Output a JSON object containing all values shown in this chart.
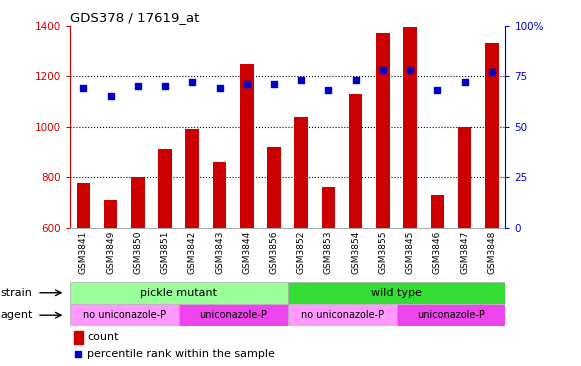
{
  "title": "GDS378 / 17619_at",
  "samples": [
    "GSM3841",
    "GSM3849",
    "GSM3850",
    "GSM3851",
    "GSM3842",
    "GSM3843",
    "GSM3844",
    "GSM3856",
    "GSM3852",
    "GSM3853",
    "GSM3854",
    "GSM3855",
    "GSM3845",
    "GSM3846",
    "GSM3847",
    "GSM3848"
  ],
  "counts": [
    775,
    710,
    800,
    910,
    990,
    860,
    1250,
    920,
    1040,
    760,
    1130,
    1370,
    1395,
    730,
    1000,
    1330
  ],
  "percentiles": [
    69,
    65,
    70,
    70,
    72,
    69,
    71,
    71,
    73,
    68,
    73,
    78,
    78,
    68,
    72,
    77
  ],
  "ylim_left": [
    600,
    1400
  ],
  "ylim_right": [
    0,
    100
  ],
  "yticks_left": [
    600,
    800,
    1000,
    1200,
    1400
  ],
  "yticks_right": [
    0,
    25,
    50,
    75,
    100
  ],
  "yticklabels_right": [
    "0",
    "25",
    "50",
    "75",
    "100%"
  ],
  "bar_color": "#cc0000",
  "dot_color": "#0000cc",
  "grid_color": "#000000",
  "bar_width": 0.5,
  "strain_groups": [
    {
      "label": "pickle mutant",
      "start": 0,
      "end": 8,
      "color": "#99ff99"
    },
    {
      "label": "wild type",
      "start": 8,
      "end": 16,
      "color": "#33dd33"
    }
  ],
  "agent_groups": [
    {
      "label": "no uniconazole-P",
      "start": 0,
      "end": 4,
      "color": "#ff99ff"
    },
    {
      "label": "uniconazole-P",
      "start": 4,
      "end": 8,
      "color": "#ee44ee"
    },
    {
      "label": "no uniconazole-P",
      "start": 8,
      "end": 12,
      "color": "#ff99ff"
    },
    {
      "label": "uniconazole-P",
      "start": 12,
      "end": 16,
      "color": "#ee44ee"
    }
  ],
  "strain_label": "strain",
  "agent_label": "agent",
  "legend_count_label": "count",
  "legend_pct_label": "percentile rank within the sample",
  "left_axis_color": "#cc0000",
  "right_axis_color": "#0000cc",
  "bg_color": "#ffffff",
  "plot_bg_color": "#ffffff",
  "xtick_bg_color": "#cccccc",
  "dotgrid_linestyle": "dotted"
}
